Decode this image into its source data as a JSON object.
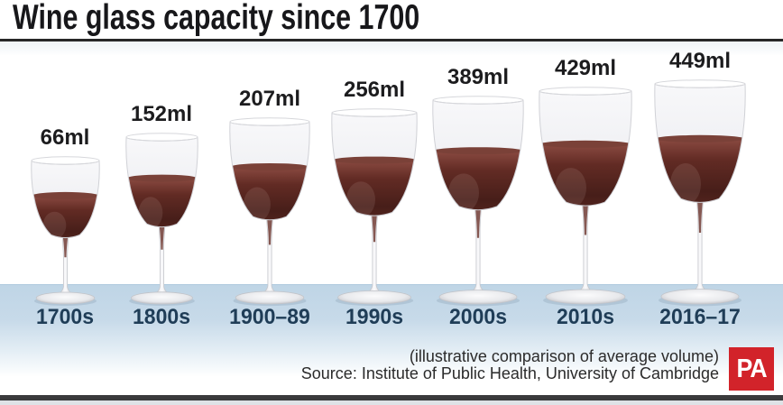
{
  "title": "Wine glass capacity since 1700",
  "chart_data": {
    "type": "bar",
    "subtype": "pictogram-wine-glasses",
    "title": "Wine glass capacity since 1700",
    "categories": [
      "1700s",
      "1800s",
      "1900–89",
      "1990s",
      "2000s",
      "2010s",
      "2016–17"
    ],
    "values": [
      66,
      152,
      207,
      256,
      389,
      429,
      449
    ],
    "unit": "ml",
    "value_labels": [
      "66ml",
      "152ml",
      "207ml",
      "256ml",
      "389ml",
      "429ml",
      "449ml"
    ],
    "xlabel": "",
    "ylabel": "",
    "legend": "none",
    "layout": "horizontal row of wine glasses, size proportional to volume, feet aligned on light blue floor band"
  },
  "caption": {
    "note": "(illustrative comparison of average volume)",
    "source": "Source: Institute of Public Health, University of Cambridge"
  },
  "branding": {
    "logo_text": "PA"
  },
  "colors": {
    "wine_dark": "#471e19",
    "wine_light": "#8a4a41",
    "wine_surface": "#7a4138",
    "floor_band": "#c2d7e7",
    "category_label": "#1f3d57",
    "value_label": "#1c1c1e",
    "title_text": "#17171a",
    "rule": "#272727",
    "bottom_rule": "#3a3a3c",
    "logo_red": "#d2232a",
    "logo_text_color": "#ffffff"
  }
}
